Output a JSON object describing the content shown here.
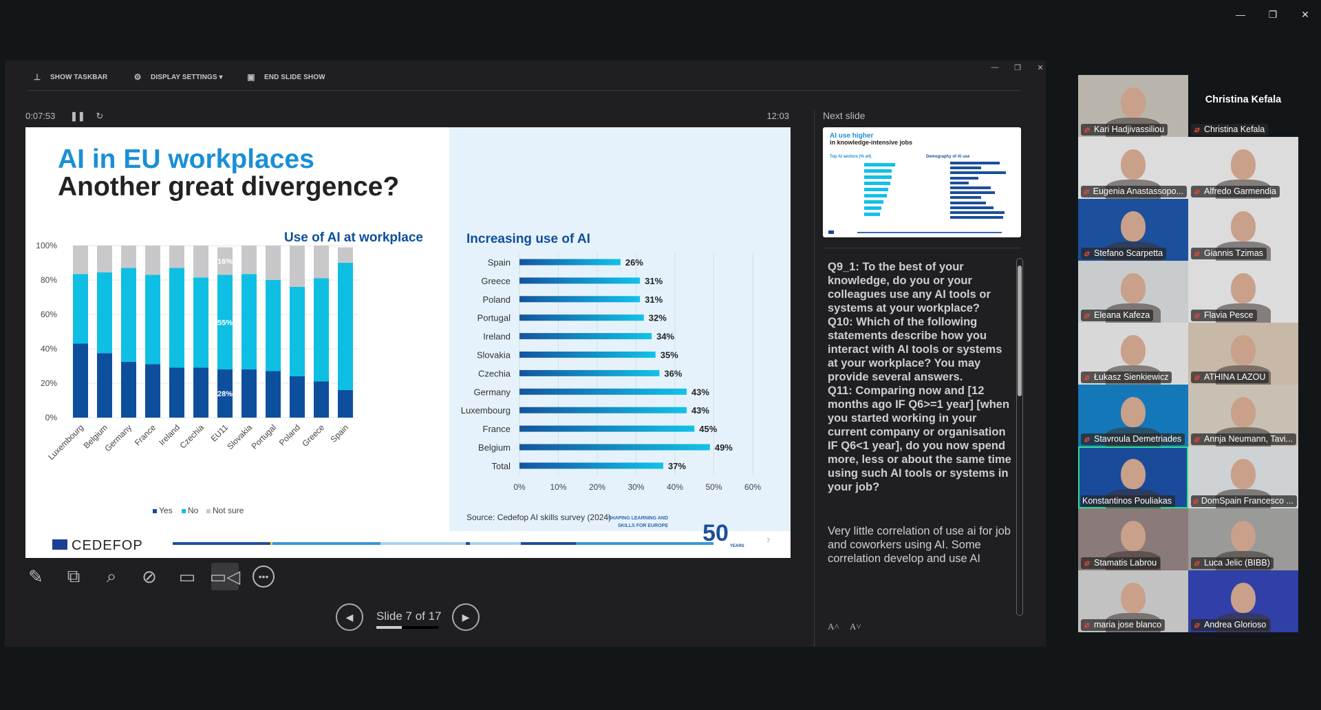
{
  "window_controls": {
    "minimize": "—",
    "restore": "❐",
    "close": "✕"
  },
  "presenter": {
    "toolbar": [
      {
        "icon": "taskbar-icon",
        "label": "SHOW TASKBAR"
      },
      {
        "icon": "display-settings-icon",
        "label": "DISPLAY SETTINGS ▾"
      },
      {
        "icon": "end-show-icon",
        "label": "END SLIDE SHOW"
      }
    ],
    "timer": "0:07:53",
    "clock": "12:03",
    "next_slide_label": "Next slide",
    "slide_counter": "Slide 7 of 17",
    "progress": 0.41,
    "tools": [
      "pen-icon",
      "see-all-slides-icon",
      "zoom-icon",
      "black-screen-icon",
      "subtitles-icon",
      "camera-icon",
      "more-icon"
    ]
  },
  "slide": {
    "title_line1": "AI in EU workplaces",
    "title_line2": "Another great divergence?",
    "source": "Source: Cedefop AI skills survey (2024)",
    "logo_text": "CEDEFOP",
    "anniversary_text": [
      "SHAPING LEARNING AND",
      "SKILLS FOR EUROPE",
      "50",
      "YEARS"
    ],
    "page_number": "7"
  },
  "chart_data": [
    {
      "type": "bar",
      "stacked": true,
      "title": "Use of AI at workplace",
      "categories": [
        "Luxembourg",
        "Belgium",
        "Germany",
        "France",
        "Ireland",
        "Czechia",
        "EU11",
        "Slovakia",
        "Portugal",
        "Poland",
        "Greece",
        "Spain"
      ],
      "series": [
        {
          "name": "Yes",
          "color": "#0d4f9c",
          "values": [
            43,
            37.5,
            32.5,
            31,
            29,
            29,
            28,
            28,
            27,
            24,
            21,
            16
          ]
        },
        {
          "name": "No",
          "color": "#0fbfe3",
          "values": [
            40.5,
            47,
            54.5,
            52,
            58,
            52.5,
            55,
            55.5,
            53,
            52,
            60,
            74
          ]
        },
        {
          "name": "Not sure",
          "color": "#c8c8cb",
          "values": [
            16.5,
            15.5,
            13,
            17,
            13,
            18.5,
            16,
            16.5,
            20,
            24,
            19,
            9
          ]
        }
      ],
      "data_labels": [
        {
          "category": "EU11",
          "series": "Yes",
          "text": "28%"
        },
        {
          "category": "EU11",
          "series": "No",
          "text": "55%"
        },
        {
          "category": "EU11",
          "series": "Not sure",
          "text": "16%"
        }
      ],
      "yticks": [
        "0%",
        "20%",
        "40%",
        "60%",
        "80%",
        "100%"
      ],
      "ylim": [
        0,
        100
      ],
      "grid": true,
      "legend": "bottom"
    },
    {
      "type": "bar",
      "orientation": "horizontal",
      "title": "Increasing use of AI",
      "categories": [
        "Spain",
        "Greece",
        "Poland",
        "Portugal",
        "Ireland",
        "Slovakia",
        "Czechia",
        "Germany",
        "Luxembourg",
        "France",
        "Belgium",
        "Total"
      ],
      "values": [
        26,
        31,
        31,
        32,
        34,
        35,
        36,
        43,
        43,
        45,
        49,
        37
      ],
      "labels": [
        "26%",
        "31%",
        "31%",
        "32%",
        "34%",
        "35%",
        "36%",
        "43%",
        "43%",
        "45%",
        "49%",
        "37%"
      ],
      "xticks": [
        "0%",
        "10%",
        "20%",
        "30%",
        "40%",
        "50%",
        "60%"
      ],
      "xlim": [
        0,
        60
      ],
      "grid": true,
      "colors": {
        "start": "#14559e",
        "end": "#12c2e8"
      }
    }
  ],
  "next_slide": {
    "title1": "AI use higher",
    "title2": "in knowledge-intensive jobs",
    "sub_left": "Top AI sectors (% all)",
    "sub_right": "Demography of AI use"
  },
  "notes": {
    "questions": "Q9_1: To the best of your knowledge, do you or your colleagues use any AI tools or systems at your workplace?\nQ10: Which of the following statements describe how you interact with AI tools or systems at your workplace? You may provide several answers.\nQ11: Comparing now and [12 months ago IF Q6>=1 year] [when you started working in your current company or organisation IF Q6<1 year], do you now spend more, less or about the same time using such AI tools or systems in your job?",
    "comment": "Very little correlation of use ai for job and coworkers using AI. Some correlation develop and use AI",
    "font_increase": "A˄",
    "font_decrease": "A˅"
  },
  "participants": {
    "featured_name": "Christina Kefala",
    "tiles": [
      {
        "name": "Kari Hadjivassiliou",
        "muted": true,
        "bg": "#b9b5ad"
      },
      {
        "name": "Christina Kefala",
        "muted": true,
        "bg": "#131619"
      },
      {
        "name": "Eugenia Anastassopo...",
        "muted": true,
        "bg": "#dcdcdc"
      },
      {
        "name": "Alfredo Garmendia",
        "muted": true,
        "bg": "#dcdcdc"
      },
      {
        "name": "Stefano Scarpetta",
        "muted": true,
        "bg": "#1c4f9c"
      },
      {
        "name": "Giannis Tzimas",
        "muted": true,
        "bg": "#dcdcdc"
      },
      {
        "name": "Eleana Kafeza",
        "muted": true,
        "bg": "#c9cccd"
      },
      {
        "name": "Flavia Pesce",
        "muted": true,
        "bg": "#dcdcdc"
      },
      {
        "name": "Łukasz Sienkiewicz",
        "muted": true,
        "bg": "#d8d8d8"
      },
      {
        "name": "ATHINA LAZOU",
        "muted": true,
        "bg": "#c8b8a8"
      },
      {
        "name": "Stavroula Demetriades",
        "muted": true,
        "bg": "#1478b8"
      },
      {
        "name": "Annja Neumann, Tavi...",
        "muted": true,
        "bg": "#c9c0b4"
      },
      {
        "name": "Konstantinos Pouliakas",
        "muted": false,
        "active": true,
        "bg": "#1a4a9a"
      },
      {
        "name": "DomSpain Francesco ...",
        "muted": true,
        "bg": "#cfd2d4"
      },
      {
        "name": "Stamatis Labrou",
        "muted": true,
        "bg": "#8a7a7a"
      },
      {
        "name": "Luca Jelic (BIBB)",
        "muted": true,
        "bg": "#9a9a98"
      },
      {
        "name": "maria jose blanco",
        "muted": true,
        "bg": "#c2c2c2"
      },
      {
        "name": "Andrea Glorioso",
        "muted": true,
        "bg": "#3040a8"
      }
    ]
  }
}
